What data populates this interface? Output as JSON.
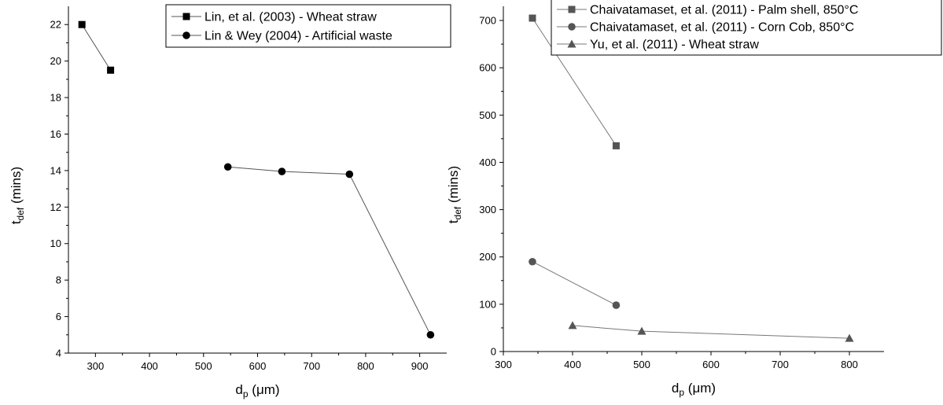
{
  "chart_data": [
    {
      "type": "line",
      "xlabel": {
        "main": "d",
        "sub": "p",
        "rest": " (μm)"
      },
      "ylabel": {
        "main": "t",
        "sub": "def",
        "rest": " (mins)"
      },
      "xlim": [
        250,
        950
      ],
      "ylim": [
        4,
        23
      ],
      "xticks": [
        300,
        400,
        500,
        600,
        700,
        800,
        900
      ],
      "yticks": [
        4,
        6,
        8,
        10,
        12,
        14,
        16,
        18,
        20,
        22
      ],
      "xtick_labels": [
        "300",
        "400",
        "500",
        "600",
        "700",
        "800",
        "900"
      ],
      "ytick_labels": [
        "4",
        "6",
        "8",
        "10",
        "12",
        "14",
        "16",
        "18",
        "20",
        "22"
      ],
      "legend_position": "top-right",
      "series": [
        {
          "name": "Lin, et al. (2003) - Wheat straw",
          "marker": "square",
          "color": "#000000",
          "line_color": "#555555",
          "x": [
            275,
            328
          ],
          "y": [
            22.0,
            19.5
          ]
        },
        {
          "name": "Lin & Wey (2004) - Artificial waste",
          "marker": "circle",
          "color": "#000000",
          "line_color": "#555555",
          "x": [
            545,
            645,
            770,
            920
          ],
          "y": [
            14.2,
            13.95,
            13.8,
            5.0
          ]
        }
      ]
    },
    {
      "type": "line",
      "xlabel": {
        "main": "d",
        "sub": "p",
        "rest": " (μm)"
      },
      "ylabel": {
        "main": "t",
        "sub": "def",
        "rest": " (mins)"
      },
      "xlim": [
        300,
        850
      ],
      "ylim": [
        0,
        730
      ],
      "xticks": [
        300,
        400,
        500,
        600,
        700,
        800
      ],
      "yticks": [
        0,
        100,
        200,
        300,
        400,
        500,
        600,
        700
      ],
      "xtick_labels": [
        "300",
        "400",
        "500",
        "600",
        "700",
        "800"
      ],
      "ytick_labels": [
        "0",
        "100",
        "200",
        "300",
        "400",
        "500",
        "600",
        "700"
      ],
      "legend_position": "top-right",
      "series": [
        {
          "name": "Chaivatamaset, et al. (2011) - Palm shell, 850°C",
          "marker": "square",
          "color": "#555555",
          "line_color": "#777777",
          "x": [
            342,
            463
          ],
          "y": [
            705,
            435
          ]
        },
        {
          "name": "Chaivatamaset, et al. (2011) - Corn Cob, 850°C",
          "marker": "circle",
          "color": "#555555",
          "line_color": "#777777",
          "x": [
            342,
            463
          ],
          "y": [
            190,
            98
          ]
        },
        {
          "name": "Yu, et al. (2011) - Wheat straw",
          "marker": "triangle",
          "color": "#555555",
          "line_color": "#777777",
          "x": [
            400,
            500,
            800
          ],
          "y": [
            55,
            43,
            28
          ]
        }
      ]
    }
  ]
}
